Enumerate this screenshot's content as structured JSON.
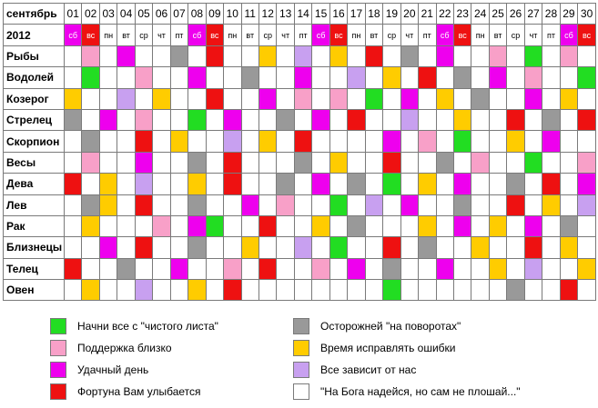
{
  "colors": {
    "g": "#22dd22",
    "p": "#f8a0c8",
    "m": "#ee00ee",
    "r": "#ee1111",
    "d": "#999999",
    "y": "#ffcc00",
    "l": "#c8a0f0",
    "w": "#ffffff",
    "header": "#ffffff",
    "weekend_bg": {
      "сб": "#ee00ee",
      "вс": "#ee1111"
    }
  },
  "calendar": {
    "month_label": "сентябрь",
    "year_label": "2012",
    "days": [
      "01",
      "02",
      "03",
      "04",
      "05",
      "06",
      "07",
      "08",
      "09",
      "10",
      "11",
      "12",
      "13",
      "14",
      "15",
      "16",
      "17",
      "18",
      "19",
      "20",
      "21",
      "22",
      "23",
      "24",
      "25",
      "26",
      "27",
      "28",
      "29",
      "30"
    ],
    "weekdays": [
      "сб",
      "вс",
      "пн",
      "вт",
      "ср",
      "чт",
      "пт",
      "сб",
      "вс",
      "пн",
      "вт",
      "ср",
      "чт",
      "пт",
      "сб",
      "вс",
      "пн",
      "вт",
      "ср",
      "чт",
      "пт",
      "сб",
      "вс",
      "пн",
      "вт",
      "ср",
      "чт",
      "пт",
      "сб",
      "вс"
    ],
    "signs": [
      {
        "name": "Рыбы",
        "cells": [
          "w",
          "p",
          "w",
          "m",
          "w",
          "w",
          "d",
          "w",
          "r",
          "w",
          "w",
          "y",
          "w",
          "l",
          "w",
          "y",
          "w",
          "r",
          "w",
          "d",
          "w",
          "m",
          "w",
          "w",
          "p",
          "w",
          "g",
          "w",
          "p",
          "w"
        ]
      },
      {
        "name": "Водолей",
        "cells": [
          "w",
          "g",
          "w",
          "w",
          "p",
          "w",
          "w",
          "m",
          "w",
          "w",
          "d",
          "w",
          "w",
          "m",
          "w",
          "w",
          "l",
          "w",
          "y",
          "w",
          "r",
          "w",
          "d",
          "w",
          "m",
          "w",
          "p",
          "w",
          "w",
          "g"
        ]
      },
      {
        "name": "Козерог",
        "cells": [
          "y",
          "w",
          "w",
          "l",
          "w",
          "y",
          "w",
          "w",
          "r",
          "w",
          "w",
          "m",
          "w",
          "p",
          "w",
          "p",
          "w",
          "g",
          "w",
          "m",
          "w",
          "y",
          "w",
          "d",
          "w",
          "w",
          "m",
          "w",
          "y",
          "w"
        ]
      },
      {
        "name": "Стрелец",
        "cells": [
          "d",
          "w",
          "m",
          "w",
          "p",
          "w",
          "w",
          "g",
          "w",
          "m",
          "w",
          "w",
          "d",
          "w",
          "m",
          "w",
          "r",
          "w",
          "w",
          "l",
          "w",
          "w",
          "y",
          "w",
          "w",
          "r",
          "w",
          "d",
          "w",
          "r"
        ]
      },
      {
        "name": "Скорпион",
        "cells": [
          "w",
          "d",
          "w",
          "w",
          "r",
          "w",
          "y",
          "w",
          "w",
          "l",
          "w",
          "y",
          "w",
          "r",
          "w",
          "w",
          "w",
          "w",
          "m",
          "w",
          "p",
          "w",
          "g",
          "w",
          "w",
          "y",
          "w",
          "m",
          "w",
          "w"
        ]
      },
      {
        "name": "Весы",
        "cells": [
          "w",
          "p",
          "w",
          "w",
          "m",
          "w",
          "w",
          "d",
          "w",
          "r",
          "w",
          "w",
          "w",
          "d",
          "w",
          "y",
          "w",
          "w",
          "r",
          "w",
          "w",
          "d",
          "w",
          "p",
          "w",
          "w",
          "g",
          "w",
          "w",
          "p"
        ]
      },
      {
        "name": "Дева",
        "cells": [
          "r",
          "w",
          "y",
          "w",
          "l",
          "w",
          "w",
          "y",
          "w",
          "r",
          "w",
          "w",
          "d",
          "w",
          "m",
          "w",
          "d",
          "w",
          "g",
          "w",
          "y",
          "w",
          "m",
          "w",
          "w",
          "d",
          "w",
          "r",
          "w",
          "m"
        ]
      },
      {
        "name": "Лев",
        "cells": [
          "w",
          "d",
          "y",
          "w",
          "r",
          "w",
          "w",
          "d",
          "w",
          "w",
          "m",
          "w",
          "p",
          "w",
          "w",
          "g",
          "w",
          "l",
          "w",
          "m",
          "w",
          "w",
          "d",
          "w",
          "w",
          "r",
          "w",
          "y",
          "w",
          "l"
        ]
      },
      {
        "name": "Рак",
        "cells": [
          "w",
          "y",
          "w",
          "w",
          "w",
          "p",
          "w",
          "m",
          "g",
          "w",
          "w",
          "r",
          "w",
          "w",
          "y",
          "w",
          "d",
          "w",
          "w",
          "w",
          "y",
          "w",
          "m",
          "w",
          "y",
          "w",
          "m",
          "w",
          "d",
          "w"
        ]
      },
      {
        "name": "Близнецы",
        "cells": [
          "w",
          "w",
          "m",
          "w",
          "r",
          "w",
          "w",
          "d",
          "w",
          "w",
          "y",
          "w",
          "w",
          "l",
          "w",
          "g",
          "w",
          "w",
          "r",
          "w",
          "d",
          "w",
          "w",
          "y",
          "w",
          "w",
          "r",
          "w",
          "y",
          "w"
        ]
      },
      {
        "name": "Телец",
        "cells": [
          "r",
          "w",
          "w",
          "d",
          "w",
          "w",
          "m",
          "w",
          "w",
          "p",
          "w",
          "r",
          "w",
          "w",
          "p",
          "w",
          "m",
          "w",
          "d",
          "w",
          "w",
          "m",
          "w",
          "w",
          "y",
          "w",
          "l",
          "w",
          "w",
          "y"
        ]
      },
      {
        "name": "Овен",
        "cells": [
          "w",
          "y",
          "w",
          "w",
          "l",
          "w",
          "w",
          "y",
          "w",
          "r",
          "w",
          "w",
          "w",
          "w",
          "w",
          "w",
          "w",
          "w",
          "g",
          "w",
          "w",
          "w",
          "w",
          "w",
          "w",
          "d",
          "w",
          "w",
          "r",
          "w"
        ]
      }
    ]
  },
  "legend": [
    {
      "key": "g",
      "label": "Начни все с \"чистого листа\""
    },
    {
      "key": "d",
      "label": "Осторожней \"на поворотах\""
    },
    {
      "key": "p",
      "label": "Поддержка близко"
    },
    {
      "key": "y",
      "label": "Время исправлять ошибки"
    },
    {
      "key": "m",
      "label": "Удачный день"
    },
    {
      "key": "l",
      "label": "Все зависит от нас"
    },
    {
      "key": "r",
      "label": "Фортуна Вам улыбается"
    },
    {
      "key": "w",
      "label": "\"На Бога надейся, но сам не плошай...\""
    }
  ]
}
